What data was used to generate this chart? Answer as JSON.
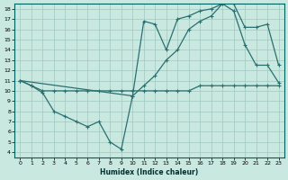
{
  "xlabel": "Humidex (Indice chaleur)",
  "bg_color": "#c8e8e0",
  "grid_color": "#a0c8c0",
  "line_color": "#2a7070",
  "xlim": [
    -0.5,
    23.5
  ],
  "ylim": [
    3.5,
    18.5
  ],
  "xticks": [
    0,
    1,
    2,
    3,
    4,
    5,
    6,
    7,
    8,
    9,
    10,
    11,
    12,
    13,
    14,
    15,
    16,
    17,
    18,
    19,
    20,
    21,
    22,
    23
  ],
  "yticks": [
    4,
    5,
    6,
    7,
    8,
    9,
    10,
    11,
    12,
    13,
    14,
    15,
    16,
    17,
    18
  ],
  "line1_x": [
    0,
    1,
    2,
    3,
    4,
    5,
    6,
    7,
    8,
    9,
    10,
    11,
    12,
    13,
    14,
    15,
    16,
    17,
    18,
    19,
    20,
    21,
    22,
    23
  ],
  "line1_y": [
    11,
    10.5,
    10,
    10,
    10,
    10,
    10,
    10,
    10,
    10,
    10,
    10,
    10,
    10,
    10,
    10,
    10.5,
    10.5,
    10.5,
    10.5,
    10.5,
    10.5,
    10.5,
    10.5
  ],
  "line2_x": [
    0,
    10,
    11,
    12,
    13,
    14,
    15,
    16,
    17,
    18,
    19,
    20,
    21,
    22,
    23
  ],
  "line2_y": [
    11,
    9.5,
    10.5,
    11.5,
    13,
    14,
    16,
    16.8,
    17.3,
    18.5,
    18.5,
    16.2,
    16.2,
    16.5,
    12.5
  ],
  "line3_x": [
    0,
    1,
    2,
    3,
    4,
    5,
    6,
    7,
    8,
    9,
    10,
    11,
    12,
    13,
    14,
    15,
    16,
    17,
    18,
    19,
    20,
    21,
    22,
    23
  ],
  "line3_y": [
    11,
    10.5,
    9.8,
    8,
    7.5,
    7,
    6.5,
    7,
    5,
    4.3,
    9.5,
    16.8,
    16.5,
    14,
    17,
    17.3,
    17.8,
    18,
    18.5,
    17.8,
    14.5,
    12.5,
    12.5,
    10.8
  ],
  "marker": "+"
}
